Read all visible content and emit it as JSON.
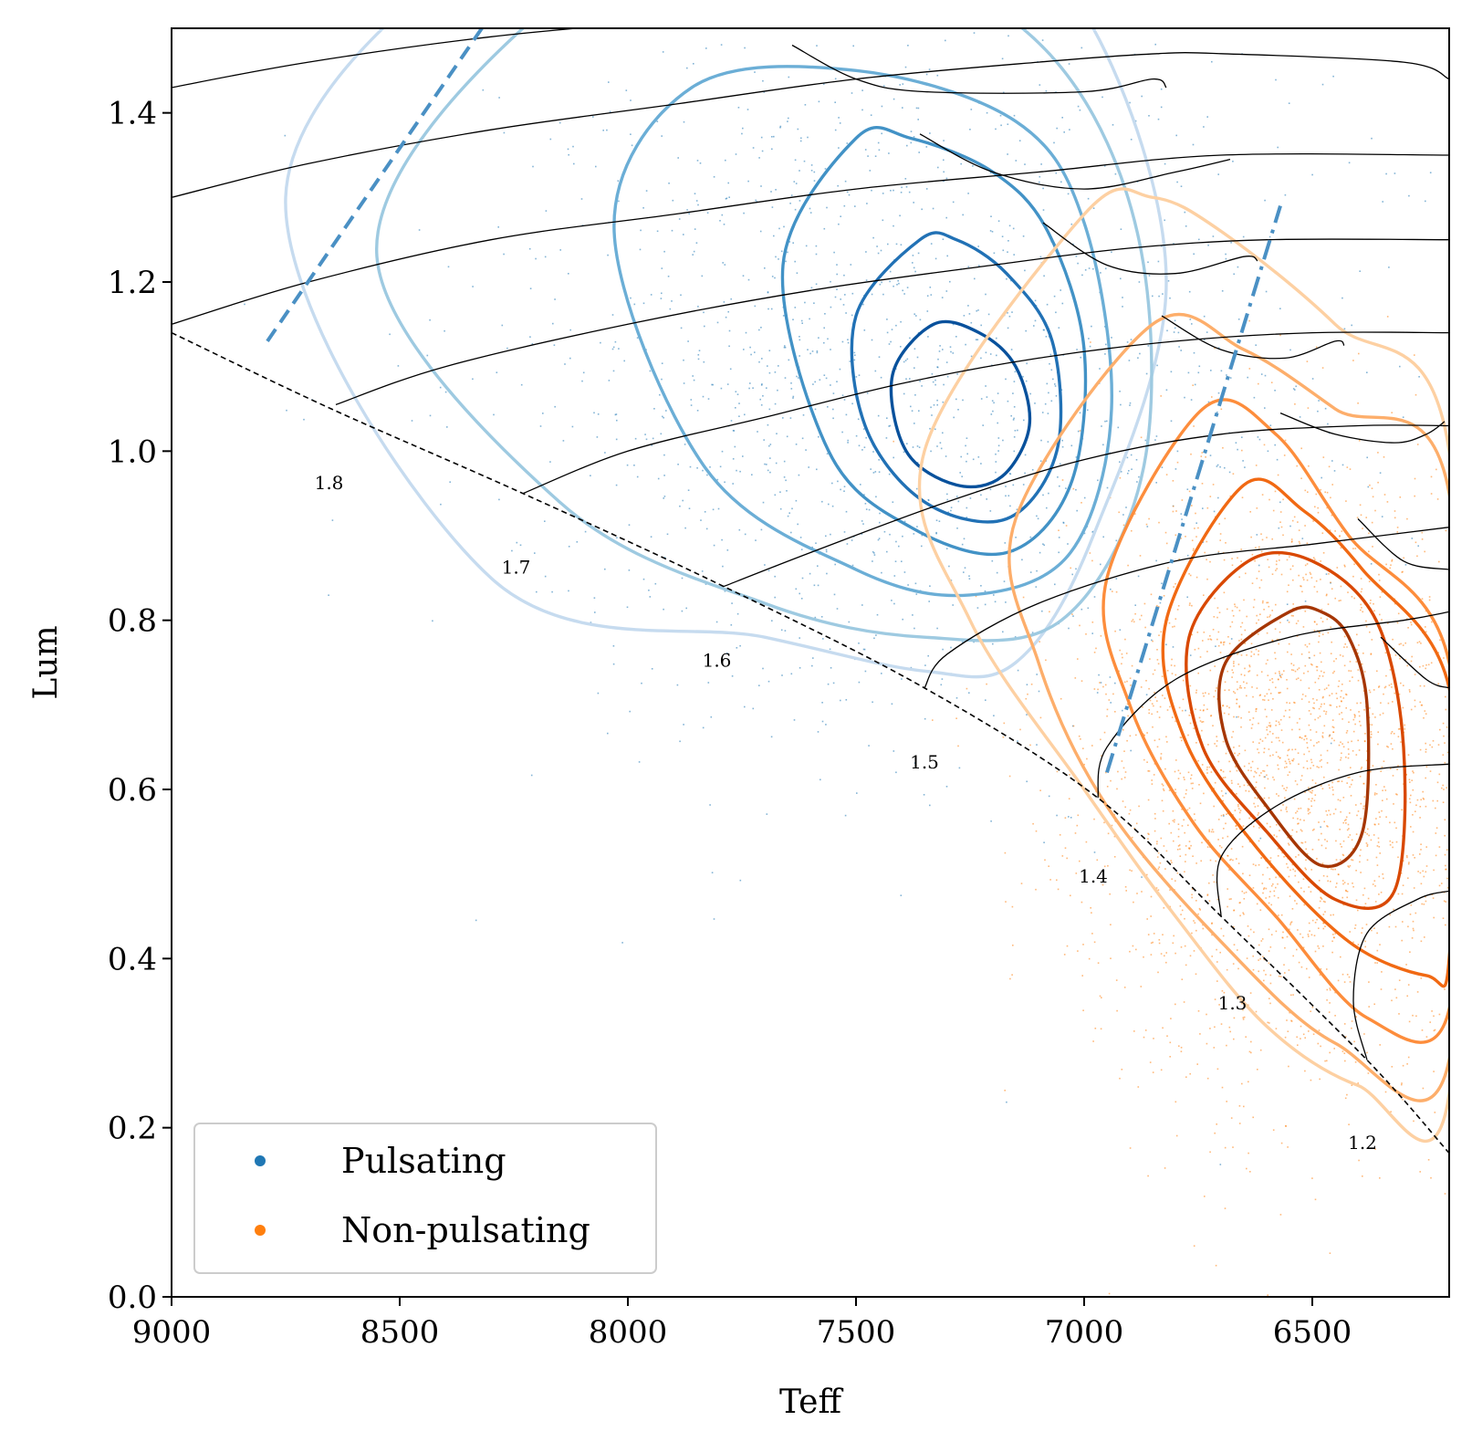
{
  "chart_data": {
    "type": "scatter",
    "title": "",
    "xlabel": "Teff",
    "ylabel": "Lum",
    "xlim": [
      9000,
      6200
    ],
    "ylim": [
      0.0,
      1.5
    ],
    "x_reversed": true,
    "grid": false,
    "legend_position": "bottom-left",
    "x_ticks": [
      9000,
      8500,
      8000,
      7500,
      7000,
      6500
    ],
    "x_tick_labels": [
      "9000",
      "8500",
      "8000",
      "7500",
      "7000",
      "6500"
    ],
    "y_ticks": [
      0.0,
      0.2,
      0.4,
      0.6,
      0.8,
      1.0,
      1.2,
      1.4
    ],
    "y_tick_labels": [
      "0.0",
      "0.2",
      "0.4",
      "0.6",
      "0.8",
      "1.0",
      "1.2",
      "1.4"
    ],
    "series": [
      {
        "name": "Pulsating",
        "color": "#1f77b4",
        "density_peak": {
          "teff": 7350,
          "lum": 1.05
        },
        "contour_colors": [
          "#deebf7",
          "#c6dbef",
          "#9ecae1",
          "#6baed6",
          "#4292c6",
          "#2171b5",
          "#08519c"
        ],
        "contours": [
          [
            [
              8250,
              1.62
            ],
            [
              8750,
              1.3
            ],
            [
              8300,
              0.85
            ],
            [
              7700,
              0.78
            ],
            [
              7350,
              0.74
            ],
            [
              7150,
              0.75
            ],
            [
              6980,
              0.9
            ],
            [
              6820,
              1.2
            ],
            [
              6980,
              1.5
            ],
            [
              7250,
              1.62
            ],
            [
              7700,
              1.65
            ]
          ],
          [
            [
              8230,
              1.5
            ],
            [
              8550,
              1.23
            ],
            [
              8150,
              0.94
            ],
            [
              7700,
              0.82
            ],
            [
              7350,
              0.78
            ],
            [
              7050,
              0.8
            ],
            [
              6870,
              0.98
            ],
            [
              6880,
              1.25
            ],
            [
              7060,
              1.46
            ],
            [
              7400,
              1.58
            ],
            [
              7800,
              1.6
            ]
          ],
          [
            [
              7860,
              1.43
            ],
            [
              8030,
              1.26
            ],
            [
              7830,
              0.98
            ],
            [
              7500,
              0.86
            ],
            [
              7250,
              0.83
            ],
            [
              7030,
              0.88
            ],
            [
              6940,
              1.05
            ],
            [
              7000,
              1.27
            ],
            [
              7150,
              1.39
            ],
            [
              7500,
              1.45
            ]
          ],
          [
            [
              7500,
              1.37
            ],
            [
              7660,
              1.22
            ],
            [
              7560,
              1.0
            ],
            [
              7380,
              0.91
            ],
            [
              7170,
              0.88
            ],
            [
              7030,
              0.96
            ],
            [
              7000,
              1.12
            ],
            [
              7080,
              1.26
            ],
            [
              7200,
              1.33
            ],
            [
              7380,
              1.37
            ]
          ],
          [
            [
              7360,
              1.25
            ],
            [
              7500,
              1.16
            ],
            [
              7480,
              1.03
            ],
            [
              7350,
              0.94
            ],
            [
              7170,
              0.92
            ],
            [
              7060,
              1.0
            ],
            [
              7070,
              1.13
            ],
            [
              7170,
              1.21
            ],
            [
              7280,
              1.25
            ]
          ],
          [
            [
              7330,
              1.15
            ],
            [
              7420,
              1.09
            ],
            [
              7390,
              1.0
            ],
            [
              7280,
              0.96
            ],
            [
              7180,
              0.97
            ],
            [
              7120,
              1.03
            ],
            [
              7150,
              1.1
            ],
            [
              7230,
              1.14
            ]
          ]
        ]
      },
      {
        "name": "Non-pulsating",
        "color": "#ff7f0e",
        "density_peak": {
          "teff": 6620,
          "lum": 0.68
        },
        "contour_colors": [
          "#fee6ce",
          "#fdd0a2",
          "#fdae6b",
          "#fd8d3c",
          "#f16913",
          "#d94801",
          "#a63603"
        ],
        "contours": [
          [
            [
              7000,
              1.28
            ],
            [
              7350,
              1.0
            ],
            [
              7250,
              0.8
            ],
            [
              7000,
              0.6
            ],
            [
              6800,
              0.45
            ],
            [
              6600,
              0.32
            ],
            [
              6400,
              0.25
            ],
            [
              6200,
              0.24
            ],
            [
              6200,
              1.0
            ],
            [
              6450,
              1.15
            ],
            [
              6700,
              1.26
            ],
            [
              6850,
              1.3
            ]
          ],
          [
            [
              6850,
              1.15
            ],
            [
              7150,
              0.92
            ],
            [
              7100,
              0.75
            ],
            [
              6950,
              0.58
            ],
            [
              6700,
              0.42
            ],
            [
              6450,
              0.3
            ],
            [
              6200,
              0.28
            ],
            [
              6200,
              0.95
            ],
            [
              6450,
              1.05
            ],
            [
              6650,
              1.12
            ]
          ],
          [
            [
              6740,
              1.05
            ],
            [
              6950,
              0.85
            ],
            [
              6900,
              0.7
            ],
            [
              6760,
              0.56
            ],
            [
              6580,
              0.45
            ],
            [
              6380,
              0.33
            ],
            [
              6200,
              0.34
            ],
            [
              6200,
              0.75
            ],
            [
              6420,
              0.9
            ],
            [
              6580,
              1.02
            ]
          ],
          [
            [
              6650,
              0.96
            ],
            [
              6820,
              0.8
            ],
            [
              6780,
              0.66
            ],
            [
              6620,
              0.53
            ],
            [
              6420,
              0.42
            ],
            [
              6250,
              0.38
            ],
            [
              6200,
              0.4
            ],
            [
              6200,
              0.72
            ],
            [
              6390,
              0.86
            ],
            [
              6520,
              0.93
            ]
          ],
          [
            [
              6640,
              0.87
            ],
            [
              6770,
              0.78
            ],
            [
              6740,
              0.65
            ],
            [
              6600,
              0.55
            ],
            [
              6450,
              0.47
            ],
            [
              6320,
              0.48
            ],
            [
              6300,
              0.65
            ],
            [
              6360,
              0.8
            ],
            [
              6500,
              0.87
            ]
          ],
          [
            [
              6550,
              0.81
            ],
            [
              6690,
              0.75
            ],
            [
              6690,
              0.66
            ],
            [
              6600,
              0.58
            ],
            [
              6480,
              0.51
            ],
            [
              6390,
              0.55
            ],
            [
              6380,
              0.7
            ],
            [
              6420,
              0.78
            ],
            [
              6480,
              0.81
            ]
          ]
        ]
      }
    ],
    "scatter_clouds": [
      {
        "series": "Pulsating",
        "teff_mean": 7400,
        "teff_sd": 450,
        "lum_mean": 1.08,
        "lum_sd": 0.22,
        "n": 1600
      },
      {
        "series": "Non-pulsating",
        "teff_mean": 6550,
        "teff_sd": 240,
        "lum_mean": 0.62,
        "lum_sd": 0.18,
        "n": 2600
      }
    ],
    "zams_line": [
      [
        9000,
        1.14
      ],
      [
        8650,
        1.05
      ],
      [
        8230,
        0.95
      ],
      [
        7790,
        0.84
      ],
      [
        7350,
        0.72
      ],
      [
        6970,
        0.59
      ],
      [
        6700,
        0.45
      ],
      [
        6380,
        0.28
      ],
      [
        6200,
        0.17
      ]
    ],
    "instability_strip": {
      "blue_edge": [
        [
          8790,
          1.13
        ],
        [
          8320,
          1.5
        ]
      ],
      "red_edge": [
        [
          6950,
          0.62
        ],
        [
          6570,
          1.29
        ]
      ]
    },
    "tracks": [
      {
        "mass_label": "1.8",
        "label_at": [
          8655,
          0.955
        ],
        "points": [
          [
            9000,
            1.43
          ],
          [
            8700,
            1.46
          ],
          [
            8300,
            1.49
          ],
          [
            7900,
            1.51
          ],
          [
            7500,
            1.53
          ],
          [
            7000,
            1.55
          ]
        ]
      },
      {
        "mass_label": "1.7",
        "label_at": [
          8245,
          0.855
        ],
        "points": [
          [
            9000,
            1.3
          ],
          [
            8700,
            1.34
          ],
          [
            8300,
            1.38
          ],
          [
            7900,
            1.41
          ],
          [
            7500,
            1.44
          ],
          [
            7100,
            1.46
          ],
          [
            6840,
            1.47
          ],
          [
            6700,
            1.47
          ],
          [
            6300,
            1.46
          ],
          [
            6200,
            1.44
          ]
        ],
        "hook": [
          [
            7640,
            1.48
          ],
          [
            7500,
            1.44
          ],
          [
            7350,
            1.425
          ],
          [
            7000,
            1.425
          ],
          [
            6850,
            1.44
          ],
          [
            6820,
            1.43
          ]
        ]
      },
      {
        "mass_label": "1.6",
        "label_at": [
          7805,
          0.745
        ],
        "points": [
          [
            9000,
            1.15
          ],
          [
            8700,
            1.2
          ],
          [
            8300,
            1.25
          ],
          [
            7900,
            1.28
          ],
          [
            7500,
            1.31
          ],
          [
            7100,
            1.33
          ],
          [
            6700,
            1.35
          ],
          [
            6200,
            1.35
          ]
        ],
        "hook": [
          [
            7360,
            1.375
          ],
          [
            7200,
            1.33
          ],
          [
            7000,
            1.31
          ],
          [
            6800,
            1.33
          ],
          [
            6680,
            1.345
          ]
        ]
      },
      {
        "mass_label": "1.5",
        "label_at": [
          7350,
          0.625
        ],
        "points": [
          [
            8640,
            1.055
          ],
          [
            8400,
            1.1
          ],
          [
            8000,
            1.15
          ],
          [
            7600,
            1.19
          ],
          [
            7200,
            1.22
          ],
          [
            6900,
            1.24
          ],
          [
            6600,
            1.25
          ],
          [
            6200,
            1.25
          ]
        ],
        "hook": [
          [
            7090,
            1.27
          ],
          [
            6950,
            1.22
          ],
          [
            6800,
            1.21
          ],
          [
            6650,
            1.23
          ],
          [
            6620,
            1.225
          ]
        ]
      },
      {
        "mass_label": "1.4",
        "label_at": [
          6980,
          0.49
        ],
        "points": [
          [
            8230,
            0.95
          ],
          [
            8000,
            1.0
          ],
          [
            7700,
            1.04
          ],
          [
            7400,
            1.08
          ],
          [
            7100,
            1.11
          ],
          [
            6800,
            1.13
          ],
          [
            6500,
            1.14
          ],
          [
            6200,
            1.14
          ]
        ],
        "hook": [
          [
            6830,
            1.16
          ],
          [
            6700,
            1.12
          ],
          [
            6560,
            1.11
          ],
          [
            6450,
            1.13
          ],
          [
            6430,
            1.125
          ]
        ]
      },
      {
        "mass_label": "1.3",
        "label_at": [
          6675,
          0.34
        ],
        "points": [
          [
            7790,
            0.84
          ],
          [
            7600,
            0.88
          ],
          [
            7300,
            0.94
          ],
          [
            7000,
            0.99
          ],
          [
            6700,
            1.02
          ],
          [
            6400,
            1.03
          ],
          [
            6200,
            1.03
          ]
        ],
        "hook": [
          [
            6570,
            1.045
          ],
          [
            6450,
            1.02
          ],
          [
            6320,
            1.01
          ],
          [
            6250,
            1.02
          ],
          [
            6210,
            1.035
          ]
        ]
      },
      {
        "mass_label": "1.2",
        "label_at": [
          6390,
          0.175
        ],
        "points": [
          [
            7350,
            0.72
          ],
          [
            7300,
            0.76
          ],
          [
            7100,
            0.82
          ],
          [
            6800,
            0.87
          ],
          [
            6500,
            0.89
          ],
          [
            6200,
            0.91
          ]
        ],
        "hook": [
          [
            6400,
            0.92
          ],
          [
            6300,
            0.87
          ],
          [
            6200,
            0.86
          ]
        ]
      },
      {
        "mass_label": "",
        "points": [
          [
            6970,
            0.59
          ],
          [
            6950,
            0.65
          ],
          [
            6800,
            0.73
          ],
          [
            6550,
            0.78
          ],
          [
            6300,
            0.8
          ],
          [
            6200,
            0.81
          ]
        ],
        "hook": [
          [
            6350,
            0.78
          ],
          [
            6250,
            0.73
          ],
          [
            6200,
            0.72
          ]
        ]
      },
      {
        "mass_label": "",
        "points": [
          [
            6700,
            0.45
          ],
          [
            6700,
            0.52
          ],
          [
            6580,
            0.58
          ],
          [
            6400,
            0.62
          ],
          [
            6200,
            0.63
          ]
        ]
      },
      {
        "mass_label": "",
        "points": [
          [
            6380,
            0.28
          ],
          [
            6410,
            0.35
          ],
          [
            6380,
            0.43
          ],
          [
            6270,
            0.47
          ],
          [
            6200,
            0.48
          ]
        ]
      }
    ],
    "legend": [
      {
        "label": "Pulsating",
        "color": "#1f77b4"
      },
      {
        "label": "Non-pulsating",
        "color": "#ff7f0e"
      }
    ]
  }
}
